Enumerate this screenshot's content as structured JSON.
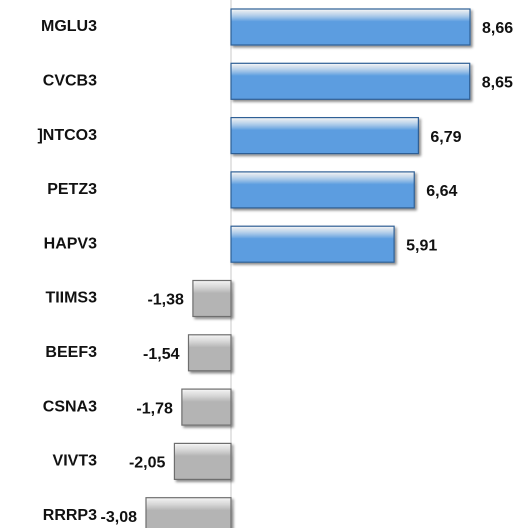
{
  "chart_data": {
    "type": "bar",
    "orientation": "horizontal",
    "categories": [
      "MGLU3",
      "CVCB3",
      "]NTCO3",
      "PETZ3",
      "HAPV3",
      "TIIMS3",
      "BEEF3",
      "CSNA3",
      "VIVT3",
      "RRRP3"
    ],
    "values": [
      8.66,
      8.65,
      6.79,
      6.64,
      5.91,
      -1.38,
      -1.54,
      -1.78,
      -2.05,
      -3.08
    ],
    "value_labels": [
      "8,66",
      "8,65",
      "6,79",
      "6,64",
      "5,91",
      "-1,38",
      "-1,54",
      "-1,78",
      "-2,05",
      "-3,08"
    ],
    "positive_color": "#5b9de0",
    "negative_color": "#b4b4b4"
  }
}
